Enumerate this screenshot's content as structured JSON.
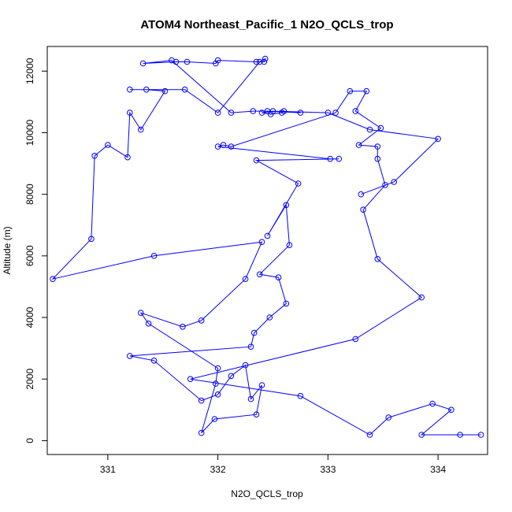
{
  "chart_data": {
    "type": "line",
    "title": "ATOM4 Northeast_Pacific_1 N2O_QCLS_trop",
    "xlabel": "N2O_QCLS_trop",
    "ylabel": "Altitude (m)",
    "xlim": [
      330.45,
      334.45
    ],
    "ylim": [
      -450,
      12800
    ],
    "x_ticks": [
      331,
      332,
      333,
      334
    ],
    "y_ticks": [
      0,
      2000,
      4000,
      6000,
      8000,
      10000,
      12000
    ],
    "grid": false,
    "legend": "none",
    "series_color": "#0000ff",
    "series": [
      {
        "x": [
          334.39,
          334.2,
          333.85,
          334.12,
          333.95,
          333.55,
          333.38,
          332.75,
          331.75,
          333.25,
          333.85,
          333.45,
          333.32,
          333.52,
          333.45,
          333.45,
          333.28,
          333.48,
          333.25,
          333.35,
          333.2,
          333.07,
          332.12,
          332.05,
          332.0,
          333.02,
          333.1,
          332.35,
          332.73,
          332.45,
          332.62,
          332.65,
          332.38,
          332.55,
          332.62,
          332.47,
          332.33,
          332.3,
          331.2,
          331.42,
          331.85,
          332.0,
          332.12,
          332.25,
          332.3,
          332.4,
          332.35,
          331.97,
          331.85,
          331.98,
          332.0,
          331.37,
          331.3,
          331.68,
          331.85,
          332.25,
          332.4,
          331.42,
          330.5,
          330.85,
          330.88,
          331.0,
          331.18,
          331.2,
          331.3,
          331.52,
          331.35,
          331.2,
          331.7,
          332.0,
          332.38,
          332.43,
          332.42,
          332.35,
          332.0,
          331.98,
          331.72,
          331.62,
          331.32,
          331.58,
          332.12,
          332.32,
          332.45,
          332.75,
          332.6,
          332.58,
          332.48,
          332.4,
          332.5,
          333.0,
          333.38,
          334.0,
          333.6,
          333.3
        ],
        "y": [
          190,
          190,
          190,
          1000,
          1200,
          750,
          190,
          1450,
          2000,
          3300,
          4650,
          5900,
          7500,
          8300,
          9150,
          9550,
          9600,
          10150,
          10700,
          11350,
          11350,
          10650,
          9550,
          9600,
          9550,
          9150,
          9150,
          9100,
          8350,
          6650,
          7650,
          6350,
          5400,
          5300,
          4450,
          4000,
          3500,
          3050,
          2750,
          2600,
          1300,
          1500,
          2100,
          2450,
          1350,
          1800,
          850,
          700,
          250,
          1850,
          2350,
          3800,
          4150,
          3700,
          3900,
          5250,
          6450,
          6000,
          5250,
          6550,
          9250,
          9600,
          9200,
          10650,
          10100,
          11350,
          11400,
          11400,
          11400,
          10650,
          12300,
          12400,
          12300,
          12300,
          12350,
          12250,
          12300,
          12300,
          12250,
          12350,
          10650,
          10700,
          10700,
          10650,
          10700,
          10650,
          10600,
          10650,
          10700,
          10650,
          10100,
          9800,
          8400,
          8000
        ]
      }
    ]
  }
}
